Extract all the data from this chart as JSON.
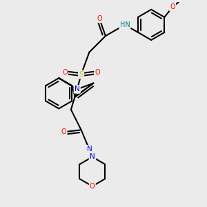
{
  "bg_color": "#ebebeb",
  "atom_colors": {
    "C": "#000000",
    "N": "#0000ff",
    "O": "#ff0000",
    "S": "#cccc00",
    "H": "#008080"
  },
  "bond_color": "#000000",
  "bond_width": 1.5,
  "figsize": [
    3.0,
    3.0
  ],
  "dpi": 100
}
